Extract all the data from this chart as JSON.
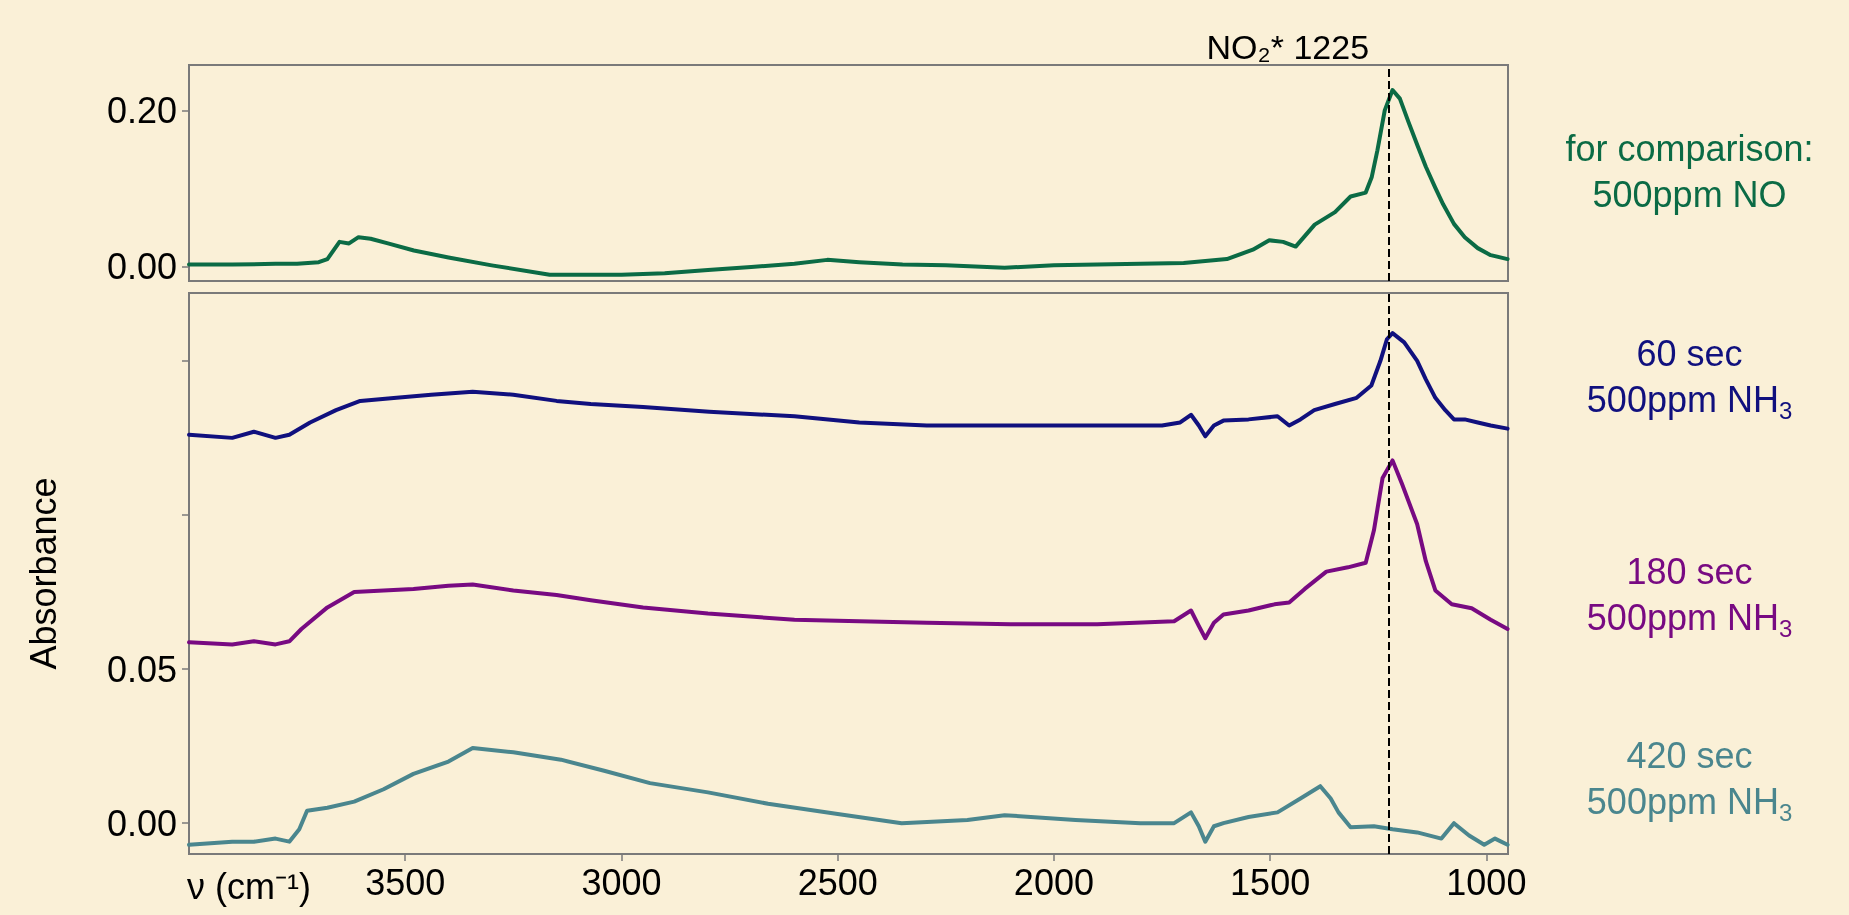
{
  "chart_data": [
    {
      "type": "line",
      "xlim": [
        4000,
        950
      ],
      "ylim": [
        -0.018,
        0.258
      ],
      "yticks": [
        {
          "value": 0,
          "label": "0.00"
        },
        {
          "value": 0.2,
          "label": "0.20"
        }
      ],
      "tick_labels": "y",
      "grid": false,
      "legend": false,
      "marker": "none",
      "line_style": "solid",
      "ref_lines": [
        {
          "axis": "x",
          "value": 1225,
          "label": "NO₂* 1225",
          "color": "#000000",
          "line_style": "dashed"
        }
      ],
      "series": [
        {
          "name": "for comparison:\n500ppm NO",
          "color": "#0b6b45",
          "x": [
            4000,
            3900,
            3800,
            3750,
            3700,
            3680,
            3652,
            3630,
            3608,
            3580,
            3540,
            3480,
            3400,
            3300,
            3166,
            3000,
            2900,
            2800,
            2700,
            2600,
            2524,
            2450,
            2350,
            2250,
            2114,
            2000,
            1900,
            1800,
            1700,
            1600,
            1540,
            1502,
            1470,
            1441,
            1397,
            1350,
            1314,
            1279,
            1265,
            1252,
            1235,
            1217,
            1200,
            1180,
            1160,
            1140,
            1118,
            1100,
            1075,
            1050,
            1020,
            990,
            951
          ],
          "values": [
            0.003,
            0.003,
            0.004,
            0.004,
            0.006,
            0.01,
            0.032,
            0.03,
            0.038,
            0.036,
            0.03,
            0.021,
            0.012,
            0.002,
            -0.01,
            -0.01,
            -0.008,
            -0.004,
            0.0,
            0.004,
            0.009,
            0.006,
            0.003,
            0.002,
            -0.001,
            0.002,
            0.003,
            0.004,
            0.005,
            0.01,
            0.022,
            0.034,
            0.032,
            0.026,
            0.054,
            0.07,
            0.09,
            0.095,
            0.115,
            0.149,
            0.2,
            0.226,
            0.215,
            0.185,
            0.156,
            0.128,
            0.101,
            0.08,
            0.055,
            0.038,
            0.024,
            0.015,
            0.01
          ]
        }
      ]
    },
    {
      "type": "line",
      "xlim": [
        4000,
        950
      ],
      "ylim": [
        -0.01,
        0.172
      ],
      "yticks": [
        {
          "value": 0,
          "label": "0.00"
        },
        0.05,
        {
          "value": 0.1,
          "label": null
        },
        {
          "value": 0.15,
          "label": null
        }
      ],
      "xticks": [
        3500,
        3000,
        2500,
        2000,
        1500,
        1000
      ],
      "xlabel": "ν (cm⁻¹)",
      "ylabel": "Absorbance",
      "grid": false,
      "legend": false,
      "marker": "none",
      "line_style": "solid",
      "ref_lines": [
        {
          "axis": "x",
          "value": 1225,
          "label": null,
          "color": "#000000",
          "line_style": "dashed"
        }
      ],
      "series": [
        {
          "name": "60 sec\n500ppm NH$_{3}$",
          "color": "#10107e",
          "x": [
            4000,
            3900,
            3850,
            3800,
            3768,
            3720,
            3660,
            3604,
            3520,
            3440,
            3344,
            3250,
            3150,
            3071,
            2950,
            2797,
            2600,
            2450,
            2294,
            2100,
            1900,
            1750,
            1708,
            1683,
            1665,
            1650,
            1630,
            1608,
            1550,
            1483,
            1456,
            1430,
            1398,
            1350,
            1300,
            1266,
            1245,
            1230,
            1217,
            1190,
            1160,
            1140,
            1118,
            1095,
            1075,
            1050,
            1020,
            990,
            951
          ],
          "values": [
            0.126,
            0.125,
            0.127,
            0.125,
            0.126,
            0.13,
            0.134,
            0.137,
            0.138,
            0.139,
            0.14,
            0.139,
            0.137,
            0.136,
            0.135,
            0.1335,
            0.132,
            0.13,
            0.129,
            0.129,
            0.129,
            0.129,
            0.13,
            0.1325,
            0.129,
            0.1255,
            0.129,
            0.1306,
            0.131,
            0.132,
            0.129,
            0.131,
            0.134,
            0.136,
            0.138,
            0.142,
            0.15,
            0.157,
            0.159,
            0.156,
            0.15,
            0.144,
            0.138,
            0.134,
            0.131,
            0.131,
            0.13,
            0.129,
            0.128
          ]
        },
        {
          "name": "180 sec\n500ppm NH$_{3}$",
          "color": "#780a82",
          "x": [
            4000,
            3900,
            3850,
            3800,
            3768,
            3740,
            3680,
            3618,
            3550,
            3481,
            3400,
            3344,
            3250,
            3150,
            3071,
            2950,
            2800,
            2600,
            2450,
            2294,
            2100,
            1900,
            1722,
            1683,
            1665,
            1650,
            1630,
            1608,
            1550,
            1490,
            1456,
            1420,
            1370,
            1320,
            1279,
            1260,
            1240,
            1217,
            1195,
            1160,
            1140,
            1118,
            1080,
            1034,
            990,
            951
          ],
          "values": [
            0.0587,
            0.058,
            0.059,
            0.058,
            0.059,
            0.063,
            0.07,
            0.075,
            0.0755,
            0.076,
            0.077,
            0.0774,
            0.0755,
            0.074,
            0.0723,
            0.07,
            0.068,
            0.066,
            0.0655,
            0.065,
            0.0645,
            0.0645,
            0.0655,
            0.069,
            0.064,
            0.06,
            0.065,
            0.0677,
            0.069,
            0.071,
            0.0716,
            0.076,
            0.0816,
            0.083,
            0.0845,
            0.095,
            0.112,
            0.1177,
            0.11,
            0.097,
            0.085,
            0.0755,
            0.071,
            0.0697,
            0.066,
            0.063
          ]
        },
        {
          "name": "420 sec\n500ppm NH$_{3}$",
          "color": "#4a868e",
          "x": [
            4000,
            3900,
            3850,
            3800,
            3768,
            3745,
            3727,
            3680,
            3618,
            3550,
            3481,
            3400,
            3344,
            3250,
            3140,
            3040,
            2934,
            2800,
            2661,
            2500,
            2352,
            2200,
            2114,
            1950,
            1800,
            1722,
            1683,
            1665,
            1650,
            1630,
            1608,
            1550,
            1483,
            1430,
            1384,
            1360,
            1342,
            1314,
            1260,
            1217,
            1160,
            1104,
            1075,
            1040,
            1005,
            980,
            951
          ],
          "values": [
            -0.007,
            -0.006,
            -0.006,
            -0.005,
            -0.006,
            -0.002,
            0.004,
            0.005,
            0.007,
            0.011,
            0.016,
            0.02,
            0.0244,
            0.023,
            0.0206,
            0.017,
            0.013,
            0.01,
            0.0063,
            0.003,
            0.0,
            0.001,
            0.0026,
            0.001,
            0.0,
            0.0,
            0.0035,
            -0.001,
            -0.006,
            -0.001,
            0.0,
            0.002,
            0.0035,
            0.008,
            0.012,
            0.008,
            0.0035,
            -0.0013,
            -0.001,
            -0.002,
            -0.003,
            -0.005,
            0.0,
            -0.004,
            -0.007,
            -0.005,
            -0.007
          ]
        }
      ]
    }
  ]
}
